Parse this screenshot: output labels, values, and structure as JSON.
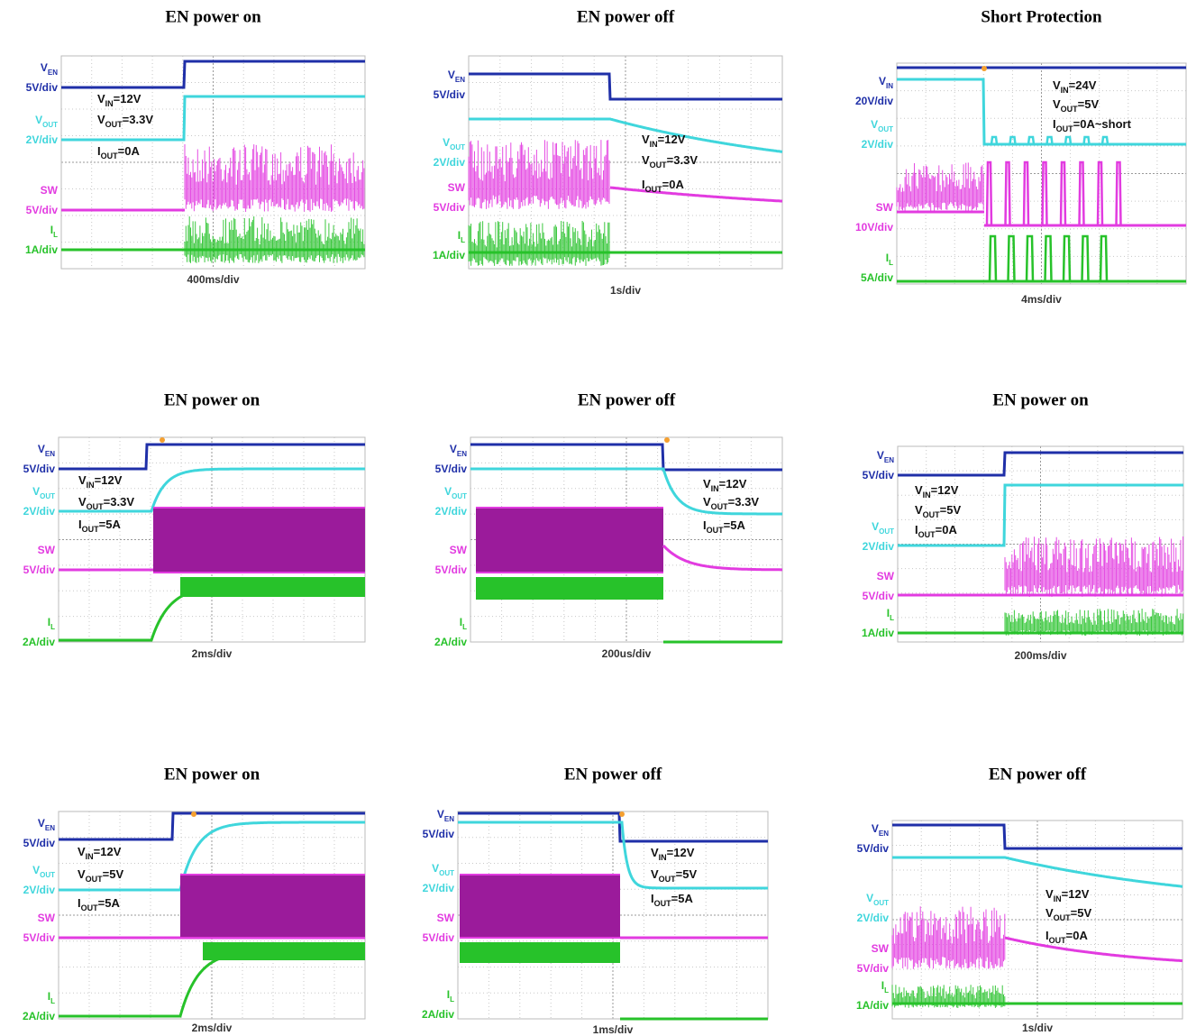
{
  "panels": [
    {
      "title": "EN power on",
      "channels": [
        {
          "name": [
            "V",
            "EN"
          ],
          "scale": "5V/div"
        },
        {
          "name": [
            "V",
            "OUT"
          ],
          "scale": "2V/div"
        },
        {
          "name": [
            "SW"
          ],
          "scale": "5V/div"
        },
        {
          "name": [
            "I",
            "L"
          ],
          "scale": "1A/div"
        }
      ],
      "notes": [
        [
          "V",
          "IN",
          "=12V"
        ],
        [
          "V",
          "OUT",
          "=3.3V"
        ],
        [
          "I",
          "OUT",
          "=0A"
        ]
      ],
      "timebase": "400ms/div"
    },
    {
      "title": "EN power off",
      "channels": [
        {
          "name": [
            "V",
            "EN"
          ],
          "scale": "5V/div"
        },
        {
          "name": [
            "V",
            "OUT"
          ],
          "scale": "2V/div"
        },
        {
          "name": [
            "SW"
          ],
          "scale": "5V/div"
        },
        {
          "name": [
            "I",
            "L"
          ],
          "scale": "1A/div"
        }
      ],
      "notes": [
        [
          "V",
          "IN",
          "=12V"
        ],
        [
          "V",
          "OUT",
          "=3.3V"
        ],
        [
          "I",
          "OUT",
          "=0A"
        ]
      ],
      "timebase": "1s/div"
    },
    {
      "title": "Short Protection",
      "channels": [
        {
          "name": [
            "V",
            "IN"
          ],
          "scale": "20V/div"
        },
        {
          "name": [
            "V",
            "OUT"
          ],
          "scale": "2V/div"
        },
        {
          "name": [
            "SW"
          ],
          "scale": "10V/div"
        },
        {
          "name": [
            "I",
            "L"
          ],
          "scale": "5A/div"
        }
      ],
      "notes": [
        [
          "V",
          "IN",
          "=24V"
        ],
        [
          "V",
          "OUT",
          "=5V"
        ],
        [
          "I",
          "OUT",
          "=0A~short"
        ]
      ],
      "timebase": "4ms/div"
    },
    {
      "title": "EN power on",
      "channels": [
        {
          "name": [
            "V",
            "EN"
          ],
          "scale": "5V/div"
        },
        {
          "name": [
            "V",
            "OUT"
          ],
          "scale": "2V/div"
        },
        {
          "name": [
            "SW"
          ],
          "scale": "5V/div"
        },
        {
          "name": [
            "I",
            "L"
          ],
          "scale": "2A/div"
        }
      ],
      "notes": [
        [
          "V",
          "IN",
          "=12V"
        ],
        [
          "V",
          "OUT",
          "=3.3V"
        ],
        [
          "I",
          "OUT",
          "=5A"
        ]
      ],
      "timebase": "2ms/div"
    },
    {
      "title": "EN power off",
      "channels": [
        {
          "name": [
            "V",
            "EN"
          ],
          "scale": "5V/div"
        },
        {
          "name": [
            "V",
            "OUT"
          ],
          "scale": "2V/div"
        },
        {
          "name": [
            "SW"
          ],
          "scale": "5V/div"
        },
        {
          "name": [
            "I",
            "L"
          ],
          "scale": "2A/div"
        }
      ],
      "notes": [
        [
          "V",
          "IN",
          "=12V"
        ],
        [
          "V",
          "OUT",
          "=3.3V"
        ],
        [
          "I",
          "OUT",
          "=5A"
        ]
      ],
      "timebase": "200us/div"
    },
    {
      "title": "EN power on",
      "channels": [
        {
          "name": [
            "V",
            "EN"
          ],
          "scale": "5V/div"
        },
        {
          "name": [
            "V",
            "OUT"
          ],
          "scale": "2V/div"
        },
        {
          "name": [
            "SW"
          ],
          "scale": "5V/div"
        },
        {
          "name": [
            "I",
            "L"
          ],
          "scale": "1A/div"
        }
      ],
      "notes": [
        [
          "V",
          "IN",
          "=12V"
        ],
        [
          "V",
          "OUT",
          "=5V"
        ],
        [
          "I",
          "OUT",
          "=0A"
        ]
      ],
      "timebase": "200ms/div"
    },
    {
      "title": "EN power on",
      "channels": [
        {
          "name": [
            "V",
            "EN"
          ],
          "scale": "5V/div"
        },
        {
          "name": [
            "V",
            "OUT"
          ],
          "scale": "2V/div"
        },
        {
          "name": [
            "SW"
          ],
          "scale": "5V/div"
        },
        {
          "name": [
            "I",
            "L"
          ],
          "scale": "2A/div"
        }
      ],
      "notes": [
        [
          "V",
          "IN",
          "=12V"
        ],
        [
          "V",
          "OUT",
          "=5V"
        ],
        [
          "I",
          "OUT",
          "=5A"
        ]
      ],
      "timebase": "2ms/div"
    },
    {
      "title": "EN power off",
      "channels": [
        {
          "name": [
            "V",
            "EN"
          ],
          "scale": "5V/div"
        },
        {
          "name": [
            "V",
            "OUT"
          ],
          "scale": "2V/div"
        },
        {
          "name": [
            "SW"
          ],
          "scale": "5V/div"
        },
        {
          "name": [
            "I",
            "L"
          ],
          "scale": "2A/div"
        }
      ],
      "notes": [
        [
          "V",
          "IN",
          "=12V"
        ],
        [
          "V",
          "OUT",
          "=5V"
        ],
        [
          "I",
          "OUT",
          "=5A"
        ]
      ],
      "timebase": "1ms/div"
    },
    {
      "title": "EN power off",
      "channels": [
        {
          "name": [
            "V",
            "EN"
          ],
          "scale": "5V/div"
        },
        {
          "name": [
            "V",
            "OUT"
          ],
          "scale": "2V/div"
        },
        {
          "name": [
            "SW"
          ],
          "scale": "5V/div"
        },
        {
          "name": [
            "I",
            "L"
          ],
          "scale": "1A/div"
        }
      ],
      "notes": [
        [
          "V",
          "IN",
          "=12V"
        ],
        [
          "V",
          "OUT",
          "=5V"
        ],
        [
          "I",
          "OUT",
          "=0A"
        ]
      ],
      "timebase": "1s/div"
    }
  ]
}
